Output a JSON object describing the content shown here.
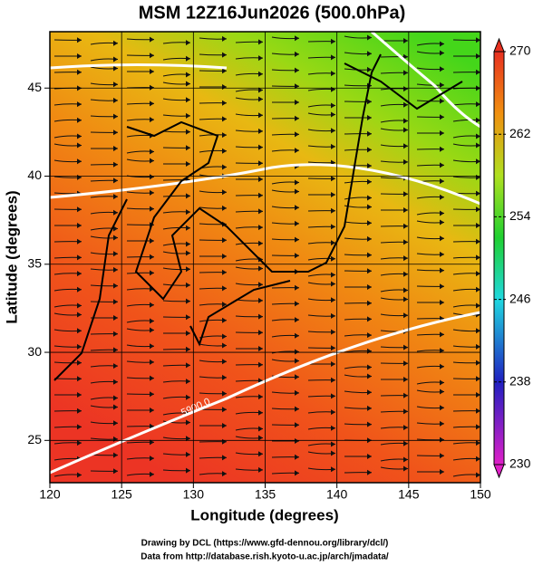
{
  "chart_data": {
    "type": "map",
    "title": "MSM 12Z16Jun2026 (500.0hPa)",
    "x_label": "Longitude (degrees)",
    "y_label": "Latitude  (degrees)",
    "xlim": [
      120,
      150
    ],
    "xticks": [
      120,
      125,
      130,
      135,
      140,
      145,
      150
    ],
    "ylim": [
      22.6,
      48.2
    ],
    "yticks": [
      25,
      30,
      35,
      40,
      45
    ],
    "grid": true,
    "colorbar": {
      "lim": [
        230,
        270
      ],
      "ticks": [
        230,
        238,
        246,
        254,
        262,
        270
      ]
    },
    "contour_label": "5900.0",
    "footer": [
      "Drawing by DCL (https://www.gfd-dennou.org/library/dcl/)",
      "Data from http://database.rish.kyoto-u.ac.jp/arch/jmadata/"
    ]
  }
}
